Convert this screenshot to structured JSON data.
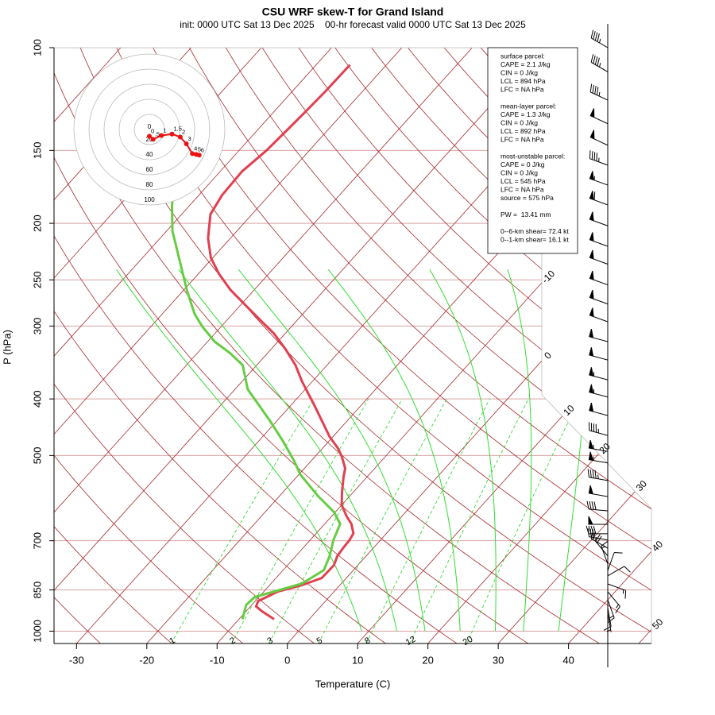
{
  "chart_data": {
    "type": "skewt",
    "title": "CSU WRF skew-T for Grand Island",
    "subtitle": "init: 0000 UTC Sat 13 Dec 2025    00-hr forecast valid 0000 UTC Sat 13 Dec 2025",
    "y_label": "P (hPa)",
    "x_label": "Temperature (C)",
    "log_y": true,
    "ylim": [
      1050,
      100
    ],
    "yticks": [
      1000,
      850,
      700,
      500,
      400,
      300,
      250,
      200,
      150,
      100
    ],
    "xlim": [
      -33.2,
      51.8
    ],
    "xticks": [
      -30,
      -20,
      -10,
      0,
      10,
      20,
      30,
      40
    ],
    "isobar_color": "#d9a3a3",
    "isotherms": [
      -100,
      -90,
      -80,
      -70,
      -60,
      -50,
      -40,
      -30,
      -20,
      -10,
      0,
      10,
      20,
      30,
      40,
      50
    ],
    "isotherm_labels": [
      -10,
      0,
      10,
      20,
      30,
      40,
      50
    ],
    "isotherm_color": "#a52a2a",
    "dry_adiabats": [
      -30,
      -20,
      -10,
      0,
      10,
      20,
      30,
      40,
      50,
      60,
      70,
      80,
      90,
      100,
      110,
      120,
      130,
      140,
      150,
      160,
      170,
      180
    ],
    "dry_adiabat_color": "#a52a2a",
    "moist_adiabats": [
      9,
      14,
      18,
      23,
      28,
      32,
      37
    ],
    "moist_adiabat_color": "#33dd33",
    "mixing_ratios": [
      1,
      2,
      3,
      5,
      8,
      12,
      20
    ],
    "mixing_ratio_color": "#33dd33",
    "series": [
      {
        "color": "#e04050",
        "pressure": [
          954,
          925,
          907,
          888,
          855,
          834,
          811,
          771,
          743,
          720,
          698,
          680,
          655,
          635,
          608,
          578,
          543,
          526,
          502,
          486,
          464,
          436,
          409,
          391,
          373,
          350,
          329,
          309,
          295,
          277,
          260,
          244,
          229,
          212,
          193,
          179,
          163,
          150,
          139,
          128,
          119,
          107
        ],
        "values": [
          -5.0,
          -7.7,
          -9.2,
          -9.6,
          -8.0,
          -5.4,
          -3.5,
          -3.4,
          -4.1,
          -4.3,
          -4.4,
          -4.7,
          -6.2,
          -7.9,
          -10.0,
          -11.6,
          -13.4,
          -14.2,
          -16.2,
          -17.8,
          -20.5,
          -23.6,
          -26.8,
          -29.1,
          -31.5,
          -34.5,
          -37.9,
          -41.6,
          -44.8,
          -49.1,
          -53.4,
          -57.1,
          -60.3,
          -63.2,
          -65.9,
          -66.7,
          -66.9,
          -66.1,
          -65.8,
          -65.5,
          -65.3,
          -65.2
        ]
      },
      {
        "color": "#66cc44",
        "pressure": [
          954,
          902,
          874,
          855,
          829,
          786,
          743,
          698,
          655,
          625,
          587,
          539,
          510,
          471,
          436,
          409,
          385,
          350,
          334,
          319,
          301,
          286,
          260,
          240,
          206,
          187,
          176
        ],
        "values": [
          -9.5,
          -10.8,
          -10.6,
          -8.5,
          -5.6,
          -4.2,
          -5.2,
          -6.7,
          -7.8,
          -10.2,
          -14.5,
          -19.8,
          -22.5,
          -26.7,
          -31.0,
          -34.7,
          -38.2,
          -42.0,
          -45.3,
          -49.0,
          -52.6,
          -55.4,
          -59.6,
          -62.9,
          -69.2,
          -72.4,
          -74.2
        ]
      }
    ],
    "winds": {
      "pressure": [
        100,
        110,
        123,
        135,
        147,
        159,
        172,
        186,
        202,
        219,
        235,
        255,
        275,
        295,
        319,
        343,
        371,
        397,
        427,
        462,
        492,
        515,
        552,
        588,
        622,
        656,
        681,
        698,
        721,
        743,
        767,
        787,
        804,
        830,
        856,
        884,
        912,
        932
      ],
      "direction": [
        300,
        300,
        295,
        295,
        295,
        290,
        290,
        290,
        290,
        290,
        290,
        290,
        290,
        290,
        285,
        285,
        285,
        285,
        285,
        285,
        280,
        280,
        280,
        280,
        275,
        270,
        270,
        280,
        300,
        320,
        340,
        20,
        60,
        110,
        140,
        160,
        170,
        170
      ],
      "speed": [
        45,
        45,
        45,
        50,
        50,
        45,
        55,
        60,
        50,
        50,
        50,
        50,
        50,
        50,
        50,
        50,
        55,
        55,
        50,
        45,
        55,
        55,
        45,
        50,
        40,
        50,
        40,
        30,
        25,
        20,
        15,
        10,
        10,
        15,
        15,
        15,
        10,
        5
      ]
    },
    "hodograph": {
      "rings": [
        0,
        20,
        40,
        60,
        80,
        100
      ],
      "labels": [
        "0",
        ".5",
        "1",
        "1.5",
        "2",
        "3",
        "4",
        "5",
        "6"
      ],
      "u": [
        0,
        5,
        16,
        30,
        41,
        49,
        57,
        62,
        66
      ],
      "v": [
        -9,
        -13,
        -8,
        -6,
        -10,
        -19,
        -32,
        -33,
        -34
      ],
      "color": "#ee1111"
    },
    "info_box": [
      [
        "surface parcel:",
        "CAPE = 2.1 J/kg",
        "CIN = 0 J/kg",
        "LCL = 894 hPa",
        "LFC = NA hPa"
      ],
      [
        "mean-layer parcel:",
        "CAPE = 1.3 J/kg",
        "CIN = 0 J/kg",
        "LCL = 892 hPa",
        "LFC = NA hPa"
      ],
      [
        "most-unstable parcel:",
        "CAPE = 0 J/kg",
        "CIN = 0 J/kg",
        "LCL = 545 hPa",
        "LFC = NA hPa",
        "source = 575 hPa"
      ],
      [
        "PW =  13.41 mm"
      ],
      [
        "0--6-km shear= 72.4 kt",
        "0--1-km shear= 16.1 kt"
      ]
    ]
  }
}
